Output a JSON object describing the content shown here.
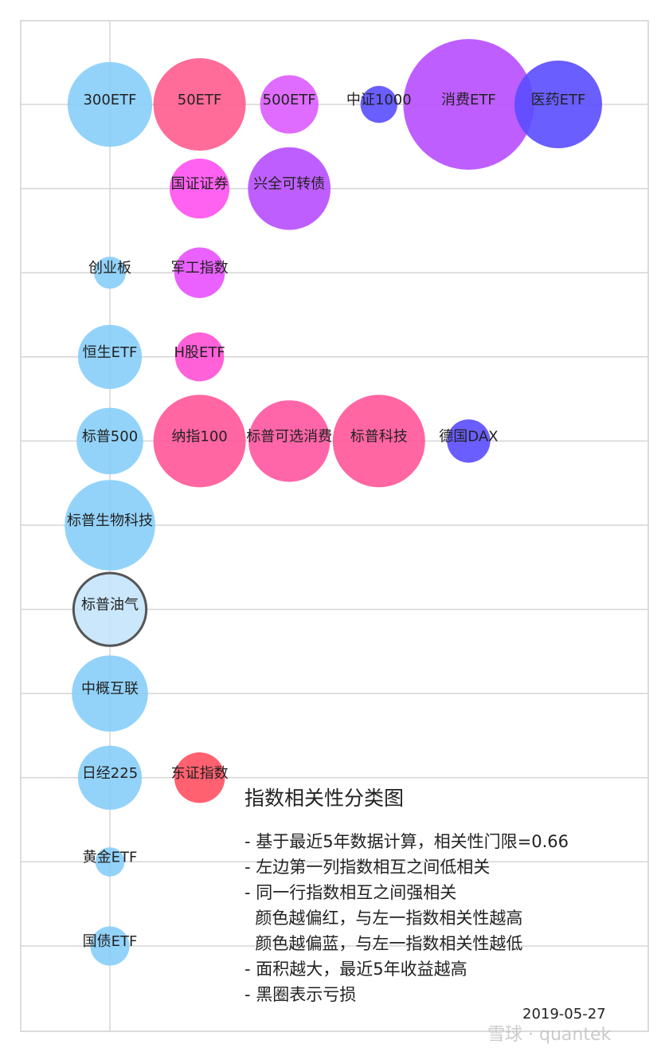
{
  "chart_data": {
    "type": "bubble",
    "title": "指数相关性分类图",
    "grid": true,
    "notes": [
      "- 基于最近5年数据计算，相关性门限=0.66",
      "- 左边第一列指数相互之间低相关",
      "- 同一行指数相互之间强相关",
      "  颜色越偏红，与左一指数相关性越高",
      "  颜色越偏蓝，与左一指数相关性越低",
      "- 面积越大，最近5年收益越高",
      "- 黑圈表示亏损"
    ],
    "date": "2019-05-27",
    "rows": 11,
    "bubbles": [
      {
        "label": "300ETF",
        "row": 0,
        "col": 0,
        "size": 0.42,
        "color": "#87cefa"
      },
      {
        "label": "50ETF",
        "row": 0,
        "col": 1,
        "size": 0.5,
        "color": "#ff5c8e"
      },
      {
        "label": "500ETF",
        "row": 0,
        "col": 2,
        "size": 0.2,
        "color": "#dd5cff"
      },
      {
        "label": "中证1000",
        "row": 0,
        "col": 3,
        "size": 0.08,
        "color": "#5a4cff"
      },
      {
        "label": "消费ETF",
        "row": 0,
        "col": 4,
        "size": 1.0,
        "color": "#b84cff"
      },
      {
        "label": "医药ETF",
        "row": 0,
        "col": 5,
        "size": 0.45,
        "color": "#5a4cff"
      },
      {
        "label": "国证证券",
        "row": 1,
        "col": 1,
        "size": 0.21,
        "color": "#ff50f0"
      },
      {
        "label": "兴全可转债",
        "row": 1,
        "col": 2,
        "size": 0.4,
        "color": "#b84cff"
      },
      {
        "label": "创业板",
        "row": 2,
        "col": 0,
        "size": 0.06,
        "color": "#87cefa"
      },
      {
        "label": "军工指数",
        "row": 2,
        "col": 1,
        "size": 0.15,
        "color": "#e850ff"
      },
      {
        "label": "恒生ETF",
        "row": 3,
        "col": 0,
        "size": 0.24,
        "color": "#87cefa"
      },
      {
        "label": "H股ETF",
        "row": 3,
        "col": 1,
        "size": 0.14,
        "color": "#ff50d4"
      },
      {
        "label": "标普500",
        "row": 4,
        "col": 0,
        "size": 0.26,
        "color": "#87cefa"
      },
      {
        "label": "纳指100",
        "row": 4,
        "col": 1,
        "size": 0.5,
        "color": "#ff5598"
      },
      {
        "label": "标普可选消费",
        "row": 4,
        "col": 2,
        "size": 0.39,
        "color": "#ff55a0"
      },
      {
        "label": "标普科技",
        "row": 4,
        "col": 3,
        "size": 0.5,
        "color": "#ff5598"
      },
      {
        "label": "德国DAX",
        "row": 4,
        "col": 4,
        "size": 0.11,
        "color": "#5a4cff"
      },
      {
        "label": "标普生物科技",
        "row": 5,
        "col": 0,
        "size": 0.48,
        "color": "#87cefa"
      },
      {
        "label": "标普油气",
        "row": 6,
        "col": 0,
        "size": 0.31,
        "color": "#c4e4fb",
        "loss": true
      },
      {
        "label": "中概互联",
        "row": 7,
        "col": 0,
        "size": 0.34,
        "color": "#87cefa"
      },
      {
        "label": "日经225",
        "row": 8,
        "col": 0,
        "size": 0.24,
        "color": "#87cefa"
      },
      {
        "label": "东证指数",
        "row": 8,
        "col": 1,
        "size": 0.15,
        "color": "#ff5060"
      },
      {
        "label": "黄金ETF",
        "row": 9,
        "col": 0,
        "size": 0.05,
        "color": "#87cefa"
      },
      {
        "label": "国债ETF",
        "row": 10,
        "col": 0,
        "size": 0.09,
        "color": "#87cefa"
      }
    ]
  },
  "watermark": "雪球 · quantek"
}
